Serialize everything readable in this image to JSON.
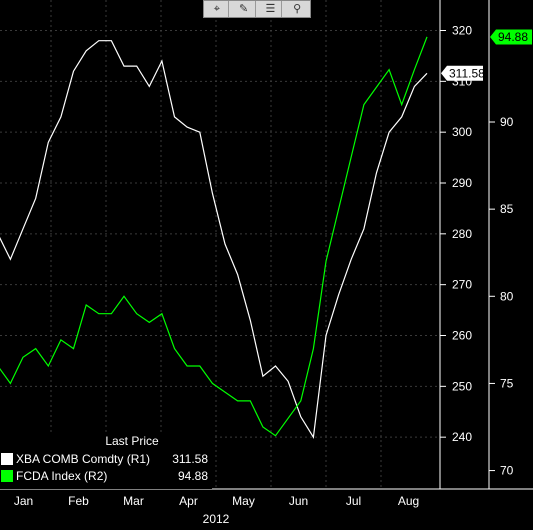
{
  "toolbar": {
    "icons": [
      "crosshair-icon",
      "pencil-icon",
      "list-icon",
      "zoom-icon"
    ],
    "glyphs": [
      "⌖",
      "✎",
      "☰",
      "⚲"
    ]
  },
  "legend": {
    "header": "Last Price",
    "entries": [
      {
        "name": "XBA COMB Comdty  (R1)",
        "value": "311.58",
        "color": "#ffffff"
      },
      {
        "name": "FCDA Index  (R2)",
        "value": "94.88",
        "color": "#00ff00"
      }
    ]
  },
  "chart_data": {
    "type": "line",
    "year_label": "2012",
    "x_tick_labels": [
      "Jan",
      "Feb",
      "Mar",
      "Apr",
      "May",
      "Jun",
      "Jul",
      "Aug"
    ],
    "axes": {
      "r1": {
        "ticks": [
          "240",
          "250",
          "260",
          "270",
          "280",
          "290",
          "300",
          "310",
          "320"
        ],
        "range": [
          230,
          326
        ]
      },
      "r2": {
        "ticks": [
          "70",
          "75",
          "80",
          "85",
          "90"
        ],
        "range": [
          69,
          97
        ]
      }
    },
    "last_labels": {
      "r1": "311.58",
      "r2": "94.88"
    },
    "series": [
      {
        "name": "XBA COMB Comdty",
        "axis": "r1",
        "color": "#ffffff",
        "x": [
          "2012-01-02",
          "2012-01-09",
          "2012-01-16",
          "2012-01-23",
          "2012-01-30",
          "2012-02-06",
          "2012-02-13",
          "2012-02-20",
          "2012-02-27",
          "2012-03-05",
          "2012-03-12",
          "2012-03-19",
          "2012-03-26",
          "2012-04-02",
          "2012-04-09",
          "2012-04-16",
          "2012-04-23",
          "2012-04-30",
          "2012-05-07",
          "2012-05-14",
          "2012-05-21",
          "2012-05-28",
          "2012-06-04",
          "2012-06-11",
          "2012-06-18",
          "2012-06-25",
          "2012-07-02",
          "2012-07-09",
          "2012-07-16",
          "2012-07-23",
          "2012-07-30",
          "2012-08-06",
          "2012-08-13",
          "2012-08-20",
          "2012-08-27"
        ],
        "y": [
          280,
          275,
          281,
          287,
          298,
          303,
          312,
          316,
          318,
          318,
          313,
          313,
          309,
          314,
          303,
          301,
          300,
          288,
          278,
          272,
          263,
          252,
          254,
          251,
          244,
          240,
          260,
          268,
          275,
          281,
          292,
          300,
          303,
          309,
          311.58
        ]
      },
      {
        "name": "FCDA Index",
        "axis": "r2",
        "color": "#00ff00",
        "x": [
          "2012-01-02",
          "2012-01-09",
          "2012-01-16",
          "2012-01-23",
          "2012-01-30",
          "2012-02-06",
          "2012-02-13",
          "2012-02-20",
          "2012-02-27",
          "2012-03-05",
          "2012-03-12",
          "2012-03-19",
          "2012-03-26",
          "2012-04-02",
          "2012-04-09",
          "2012-04-16",
          "2012-04-23",
          "2012-04-30",
          "2012-05-07",
          "2012-05-14",
          "2012-05-21",
          "2012-05-28",
          "2012-06-04",
          "2012-06-11",
          "2012-06-18",
          "2012-06-25",
          "2012-07-02",
          "2012-07-09",
          "2012-07-16",
          "2012-07-23",
          "2012-07-30",
          "2012-08-06",
          "2012-08-13",
          "2012-08-20",
          "2012-08-27"
        ],
        "y": [
          76,
          75,
          76.5,
          77,
          76,
          77.5,
          77,
          79.5,
          79,
          79,
          80,
          79,
          78.5,
          79,
          77,
          76,
          76,
          75,
          74.5,
          74,
          74,
          72.5,
          72,
          73,
          74,
          77,
          82,
          85,
          88,
          91,
          92,
          93,
          91,
          93,
          94.88
        ]
      }
    ],
    "grid": true
  }
}
